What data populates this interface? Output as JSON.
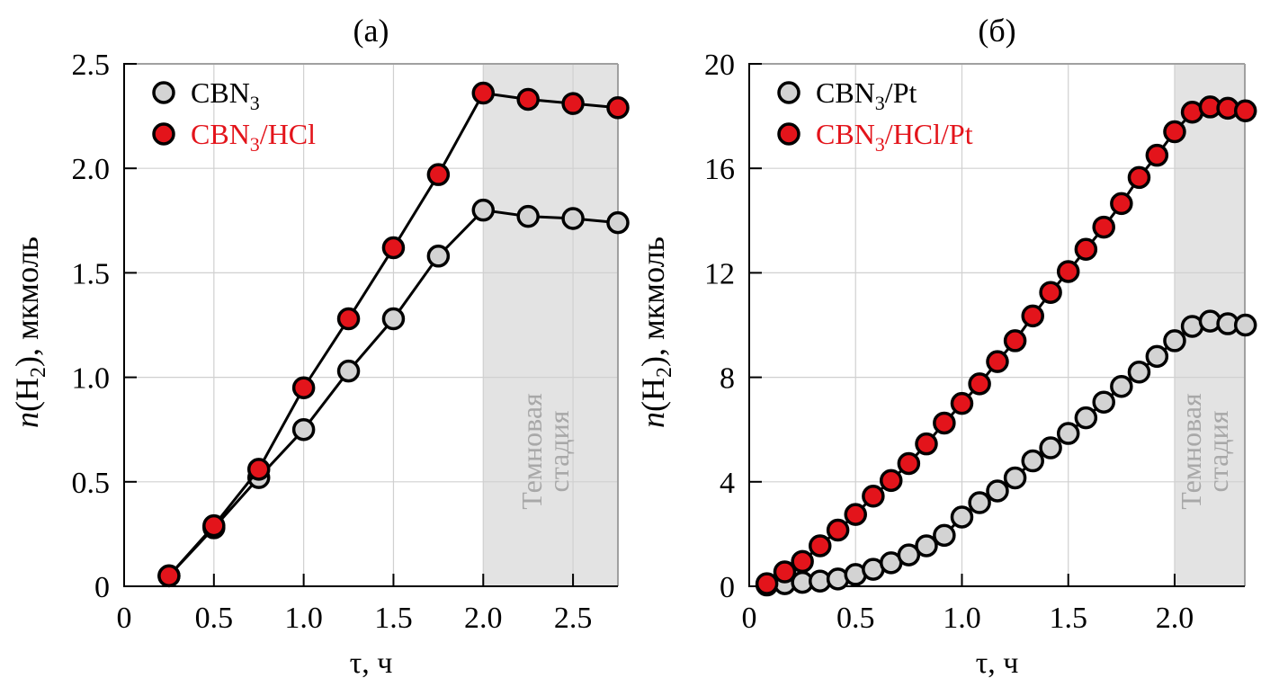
{
  "chart_data": [
    {
      "type": "line",
      "panel_label": "(a)",
      "xlabel": "τ, ч",
      "ylabel_main": "n",
      "ylabel_rest": "(H",
      "ylabel_sub": "2",
      "ylabel_tail": "), мкмоль",
      "xlim": [
        0,
        2.75
      ],
      "ylim": [
        0,
        2.5
      ],
      "xticks": [
        0,
        0.5,
        1.0,
        1.5,
        2.0,
        2.5
      ],
      "xtick_labels": [
        "0",
        "0.5",
        "1.0",
        "1.5",
        "2.0",
        "2.5"
      ],
      "yticks": [
        0,
        0.5,
        1.0,
        1.5,
        2.0,
        2.5
      ],
      "ytick_labels": [
        "0",
        "0.5",
        "1.0",
        "1.5",
        "2.0",
        "2.5"
      ],
      "grid": true,
      "legend_position": "top-left",
      "shaded_region": {
        "x_from": 2.0,
        "x_to": 2.75,
        "label_line1": "Темновая",
        "label_line2": "стадия"
      },
      "series": [
        {
          "name": "CBN3",
          "legend_main": "CBN",
          "legend_sub": "3",
          "legend_tail": "",
          "marker_fill": "#d3d3d3",
          "label_color": "#000000",
          "x": [
            0.25,
            0.5,
            0.75,
            1.0,
            1.25,
            1.5,
            1.75,
            2.0,
            2.25,
            2.5,
            2.75
          ],
          "y": [
            0.05,
            0.28,
            0.52,
            0.75,
            1.03,
            1.28,
            1.58,
            1.8,
            1.77,
            1.76,
            1.74
          ]
        },
        {
          "name": "CBN3/HCl",
          "legend_main": "CBN",
          "legend_sub": "3",
          "legend_tail": "/HCl",
          "marker_fill": "#e3141b",
          "label_color": "#e3141b",
          "x": [
            0.25,
            0.5,
            0.75,
            1.0,
            1.25,
            1.5,
            1.75,
            2.0,
            2.25,
            2.5,
            2.75
          ],
          "y": [
            0.05,
            0.29,
            0.56,
            0.95,
            1.28,
            1.62,
            1.97,
            2.36,
            2.33,
            2.31,
            2.29
          ]
        }
      ]
    },
    {
      "type": "line",
      "panel_label": "(б)",
      "xlabel": "τ, ч",
      "ylabel_main": "n",
      "ylabel_rest": "(H",
      "ylabel_sub": "2",
      "ylabel_tail": "), мкмоль",
      "xlim": [
        0,
        2.33
      ],
      "ylim": [
        0,
        20
      ],
      "xticks": [
        0,
        0.5,
        1.0,
        1.5,
        2.0
      ],
      "xtick_labels": [
        "0",
        "0.5",
        "1.0",
        "1.5",
        "2.0"
      ],
      "yticks": [
        0,
        4,
        8,
        12,
        16,
        20
      ],
      "ytick_labels": [
        "0",
        "4",
        "8",
        "12",
        "16",
        "20"
      ],
      "grid": true,
      "legend_position": "top-left",
      "shaded_region": {
        "x_from": 2.0,
        "x_to": 2.33,
        "label_line1": "Темновая",
        "label_line2": "стадия"
      },
      "series": [
        {
          "name": "CBN3/Pt",
          "legend_main": "CBN",
          "legend_sub": "3",
          "legend_tail": "/Pt",
          "marker_fill": "#d3d3d3",
          "label_color": "#000000",
          "x": [
            0.083,
            0.167,
            0.25,
            0.333,
            0.417,
            0.5,
            0.583,
            0.667,
            0.75,
            0.833,
            0.917,
            1.0,
            1.083,
            1.167,
            1.25,
            1.333,
            1.417,
            1.5,
            1.583,
            1.667,
            1.75,
            1.833,
            1.917,
            2.0,
            2.083,
            2.167,
            2.25,
            2.333
          ],
          "y": [
            0.05,
            0.1,
            0.15,
            0.2,
            0.28,
            0.45,
            0.65,
            0.9,
            1.2,
            1.55,
            1.95,
            2.65,
            3.2,
            3.65,
            4.15,
            4.8,
            5.3,
            5.85,
            6.45,
            7.05,
            7.65,
            8.2,
            8.8,
            9.4,
            9.95,
            10.15,
            10.05,
            10.0
          ]
        },
        {
          "name": "CBN3/HCl/Pt",
          "legend_main": "CBN",
          "legend_sub": "3",
          "legend_tail": "/HCl/Pt",
          "marker_fill": "#e3141b",
          "label_color": "#e3141b",
          "x": [
            0.083,
            0.167,
            0.25,
            0.333,
            0.417,
            0.5,
            0.583,
            0.667,
            0.75,
            0.833,
            0.917,
            1.0,
            1.083,
            1.167,
            1.25,
            1.333,
            1.417,
            1.5,
            1.583,
            1.667,
            1.75,
            1.833,
            1.917,
            2.0,
            2.083,
            2.167,
            2.25,
            2.333
          ],
          "y": [
            0.1,
            0.55,
            0.95,
            1.55,
            2.15,
            2.75,
            3.45,
            4.05,
            4.7,
            5.45,
            6.25,
            7.0,
            7.75,
            8.6,
            9.4,
            10.35,
            11.25,
            12.05,
            12.9,
            13.75,
            14.65,
            15.65,
            16.5,
            17.4,
            18.15,
            18.35,
            18.3,
            18.2
          ]
        }
      ]
    }
  ]
}
